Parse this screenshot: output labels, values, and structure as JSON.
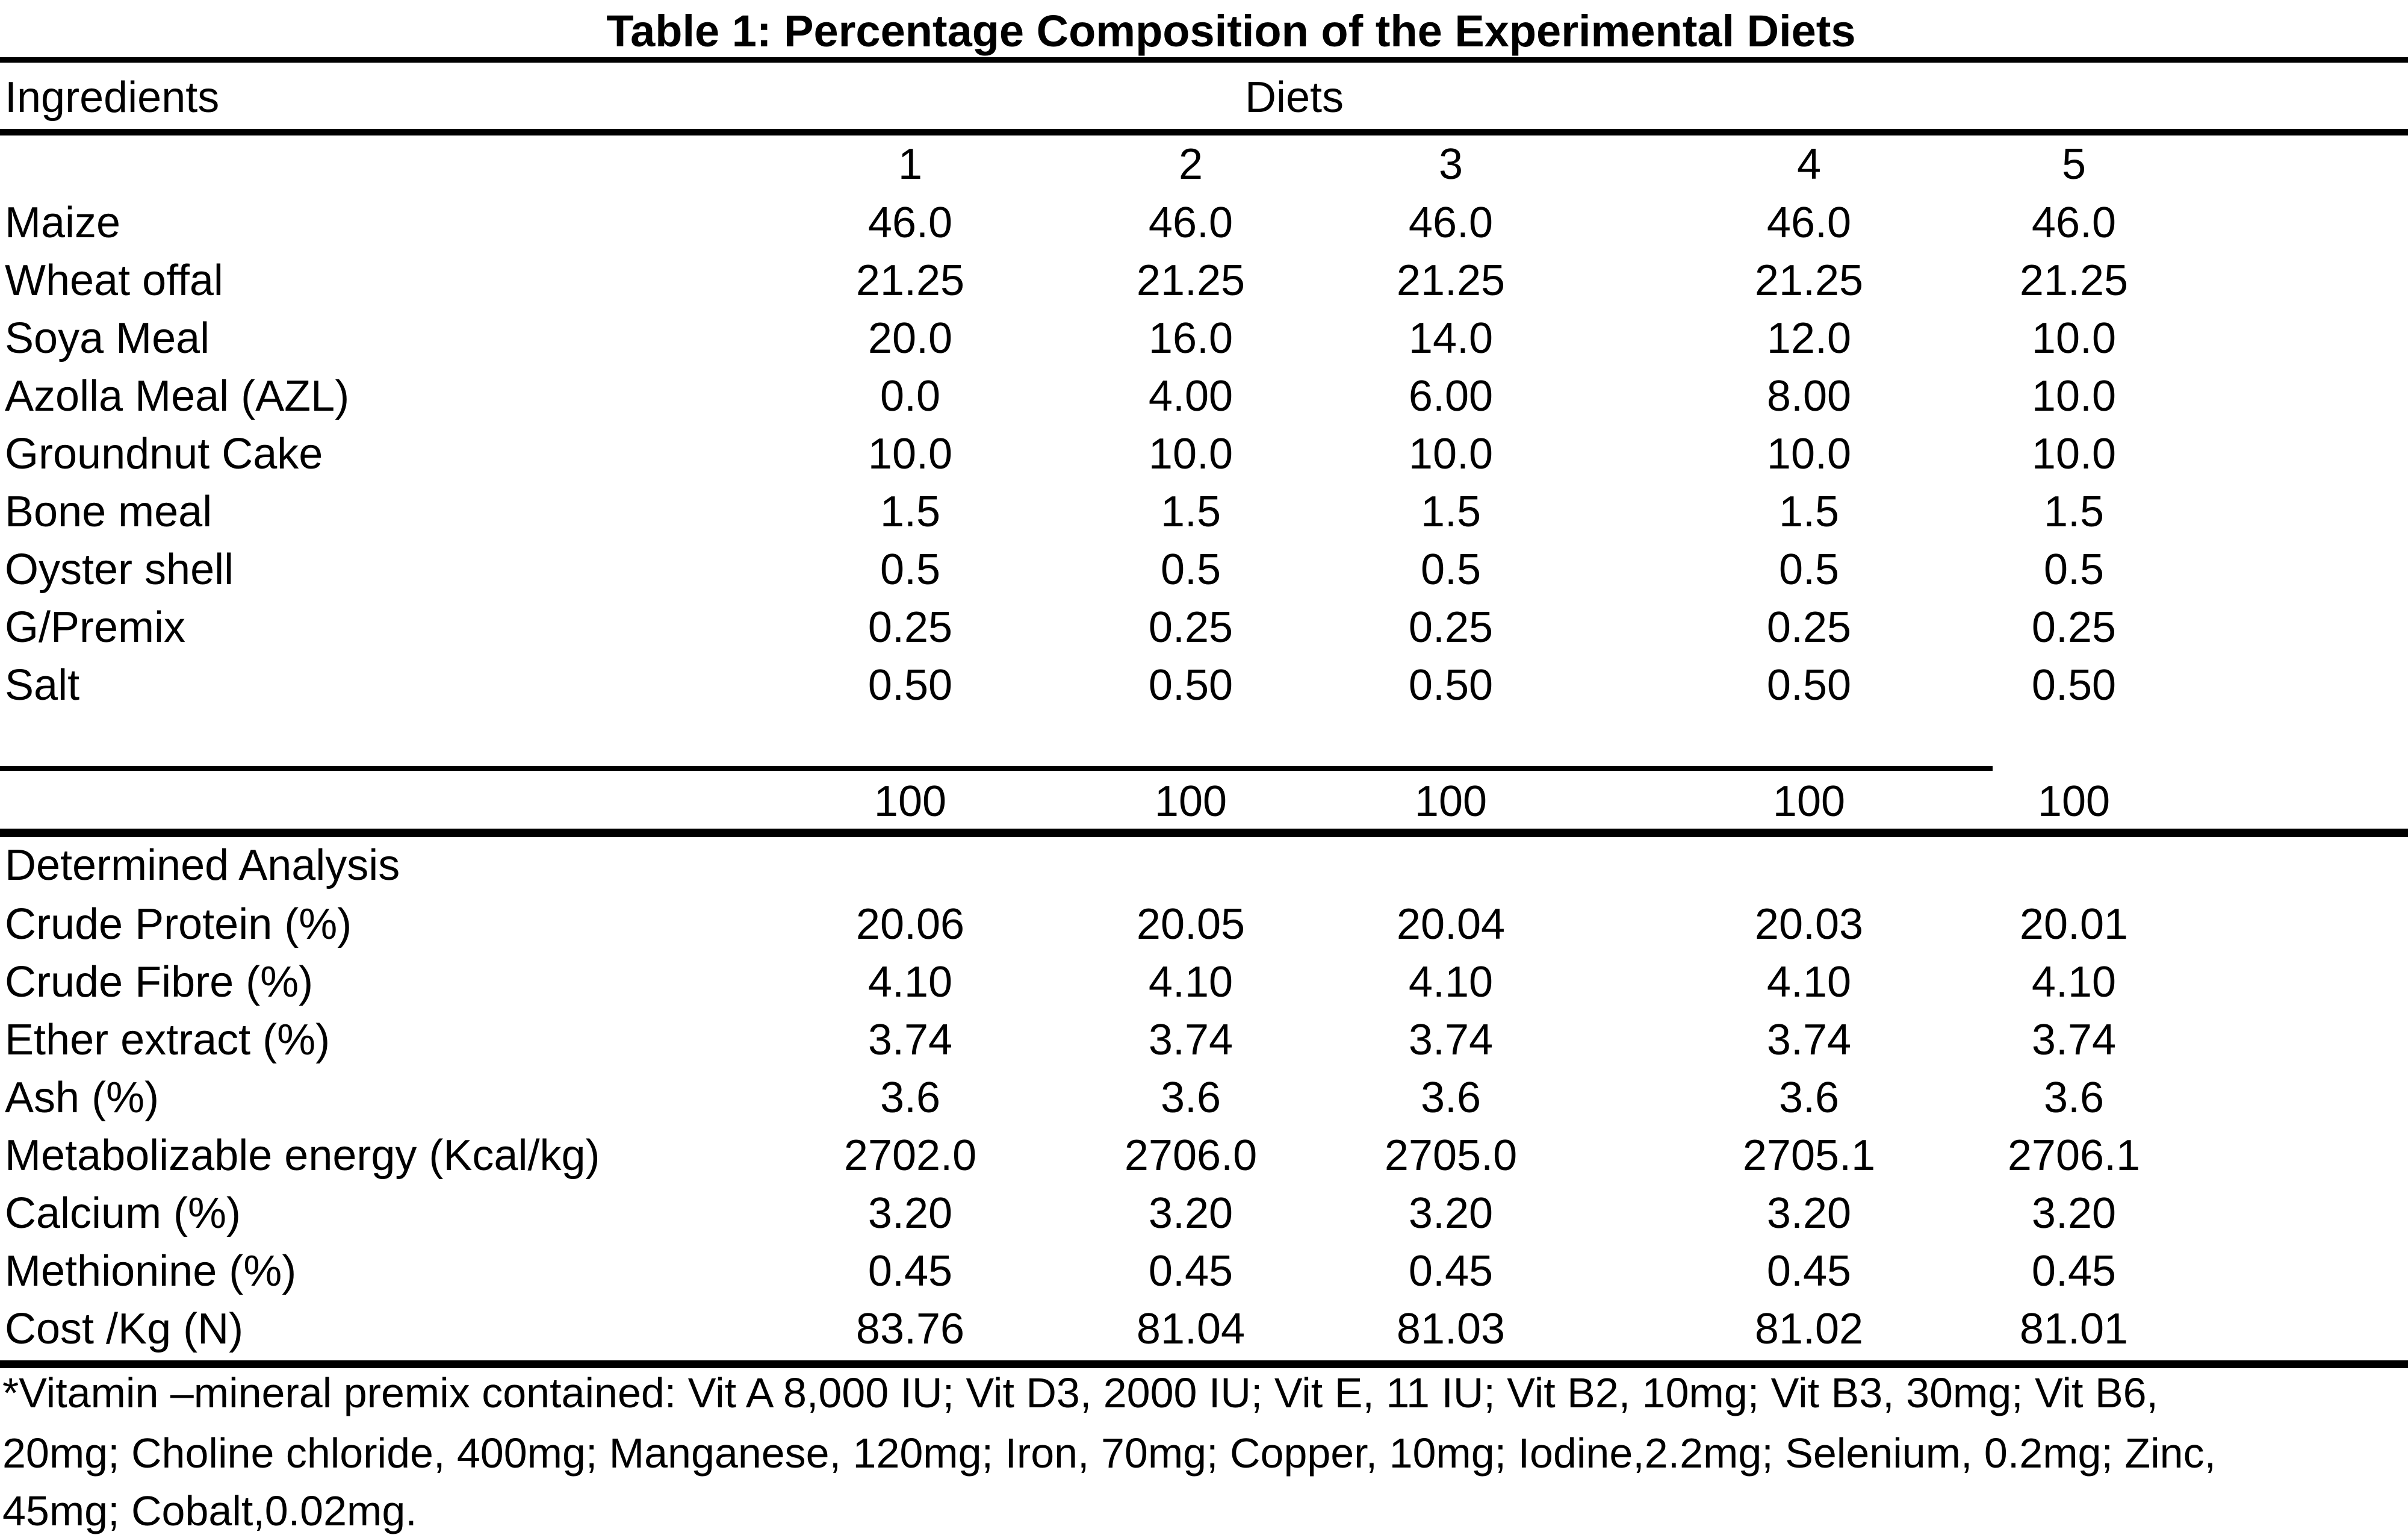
{
  "title": "Table 1: Percentage Composition of the Experimental Diets",
  "header": {
    "ingredients_label": "Ingredients",
    "diets_label": "Diets",
    "diet_numbers": [
      "1",
      "2",
      "3",
      "4",
      "5"
    ]
  },
  "ingredients_rows": [
    {
      "label": "Maize",
      "values": [
        "46.0",
        "46.0",
        "46.0",
        "46.0",
        "46.0"
      ]
    },
    {
      "label": "Wheat offal",
      "values": [
        "21.25",
        "21.25",
        "21.25",
        "21.25",
        "21.25"
      ]
    },
    {
      "label": "Soya Meal",
      "values": [
        "20.0",
        "16.0",
        "14.0",
        "12.0",
        "10.0"
      ]
    },
    {
      "label": "Azolla Meal (AZL)",
      "values": [
        "0.0",
        "4.00",
        "6.00",
        "8.00",
        "10.0"
      ]
    },
    {
      "label": "Groundnut Cake",
      "values": [
        "10.0",
        "10.0",
        "10.0",
        "10.0",
        "10.0"
      ]
    },
    {
      "label": "Bone meal",
      "values": [
        "1.5",
        "1.5",
        "1.5",
        "1.5",
        "1.5"
      ]
    },
    {
      "label": "Oyster shell",
      "values": [
        "0.5",
        "0.5",
        "0.5",
        "0.5",
        "0.5"
      ]
    },
    {
      "label": "G/Premix",
      "values": [
        "0.25",
        "0.25",
        "0.25",
        "0.25",
        "0.25"
      ]
    },
    {
      "label": "Salt",
      "values": [
        "0.50",
        "0.50",
        "0.50",
        "0.50",
        "0.50"
      ]
    }
  ],
  "total_row": {
    "label": "",
    "values": [
      "100",
      "100",
      "100",
      "100",
      "100"
    ]
  },
  "analysis_section_label": "Determined Analysis",
  "analysis_rows": [
    {
      "label": "Crude Protein (%)",
      "values": [
        "20.06",
        "20.05",
        "20.04",
        "20.03",
        "20.01"
      ]
    },
    {
      "label": "Crude Fibre (%)",
      "values": [
        "4.10",
        "4.10",
        "4.10",
        "4.10",
        "4.10"
      ]
    },
    {
      "label": "Ether extract (%)",
      "values": [
        "3.74",
        "3.74",
        "3.74",
        "3.74",
        "3.74"
      ]
    },
    {
      "label": "Ash (%)",
      "values": [
        "3.6",
        "3.6",
        "3.6",
        "3.6",
        "3.6"
      ]
    },
    {
      "label": "Metabolizable energy (Kcal/kg)",
      "values": [
        "2702.0",
        "2706.0",
        "2705.0",
        "2705.1",
        "2706.1"
      ]
    },
    {
      "label": "Calcium (%)",
      "values": [
        "3.20",
        "3.20",
        "3.20",
        "3.20",
        "3.20"
      ]
    },
    {
      "label": "Methionine (%)",
      "values": [
        "0.45",
        "0.45",
        "0.45",
        "0.45",
        "0.45"
      ]
    },
    {
      "label": "Cost /Kg (N)",
      "values": [
        "83.76",
        "81.04",
        "81.03",
        "81.02",
        "81.01"
      ]
    }
  ],
  "footnote_lines": [
    "*Vitamin –mineral premix contained: Vit A 8,000 IU; Vit D3, 2000 IU; Vit E, 11 IU; Vit B2, 10mg; Vit B3, 30mg; Vit B6,",
    "20mg; Choline chloride, 400mg; Manganese, 120mg; Iron, 70mg; Copper, 10mg; Iodine,2.2mg; Selenium, 0.2mg; Zinc,",
    "45mg; Cobalt,0.02mg."
  ],
  "colors": {
    "text": "#000000",
    "background": "#ffffff",
    "rule": "#000000"
  }
}
